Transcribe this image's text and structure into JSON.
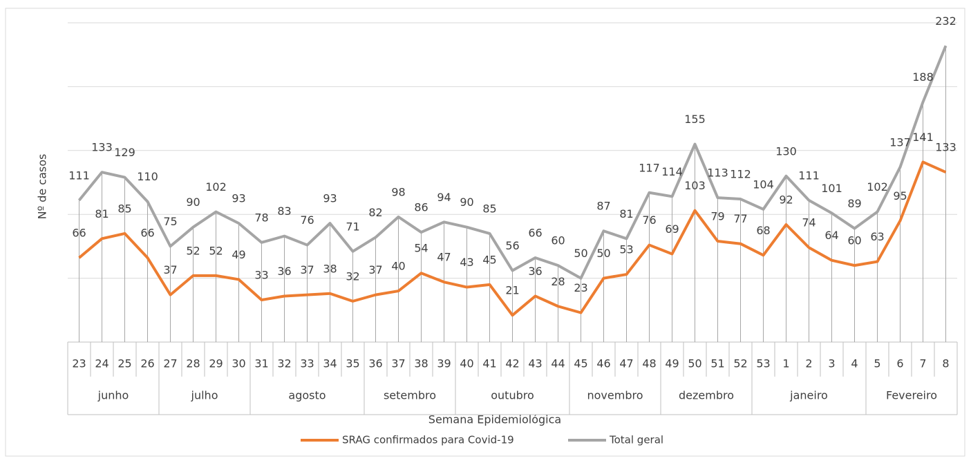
{
  "chart_data": {
    "type": "line",
    "y_axis_label": "Nº de casos",
    "x_axis_label": "Semana Epidemiológica",
    "categories": [
      "23",
      "24",
      "25",
      "26",
      "27",
      "28",
      "29",
      "30",
      "31",
      "32",
      "33",
      "34",
      "35",
      "36",
      "37",
      "38",
      "39",
      "40",
      "41",
      "42",
      "43",
      "44",
      "45",
      "46",
      "47",
      "48",
      "49",
      "50",
      "51",
      "52",
      "53",
      "1",
      "2",
      "3",
      "4",
      "5",
      "6",
      "7",
      "8"
    ],
    "month_groups": [
      {
        "label": "junho",
        "count": 4
      },
      {
        "label": "julho",
        "count": 4
      },
      {
        "label": "agosto",
        "count": 5
      },
      {
        "label": "setembro",
        "count": 4
      },
      {
        "label": "outubro",
        "count": 5
      },
      {
        "label": "novembro",
        "count": 4
      },
      {
        "label": "dezembro",
        "count": 4
      },
      {
        "label": "janeiro",
        "count": 5
      },
      {
        "label": "Fevereiro",
        "count": 4
      }
    ],
    "series": [
      {
        "name": "SRAG confirmados para Covid-19",
        "color": "#ED7D31",
        "values": [
          66,
          81,
          85,
          66,
          37,
          52,
          52,
          49,
          33,
          36,
          37,
          38,
          32,
          37,
          40,
          54,
          47,
          43,
          45,
          21,
          36,
          28,
          23,
          50,
          53,
          76,
          69,
          103,
          79,
          77,
          68,
          92,
          74,
          64,
          60,
          63,
          95,
          141,
          133
        ]
      },
      {
        "name": "Total geral",
        "color": "#A5A5A5",
        "values": [
          111,
          133,
          129,
          110,
          75,
          90,
          102,
          93,
          78,
          83,
          76,
          93,
          71,
          82,
          98,
          86,
          94,
          90,
          85,
          56,
          66,
          60,
          50,
          87,
          81,
          117,
          114,
          155,
          113,
          112,
          104,
          130,
          111,
          101,
          89,
          102,
          137,
          188,
          232
        ]
      }
    ],
    "ylim": [
      0,
      250
    ],
    "yticks": [
      50,
      100,
      150,
      200,
      250
    ],
    "show_y_tick_labels": false,
    "grid": true,
    "drop_lines": true,
    "legend": "bottom"
  }
}
